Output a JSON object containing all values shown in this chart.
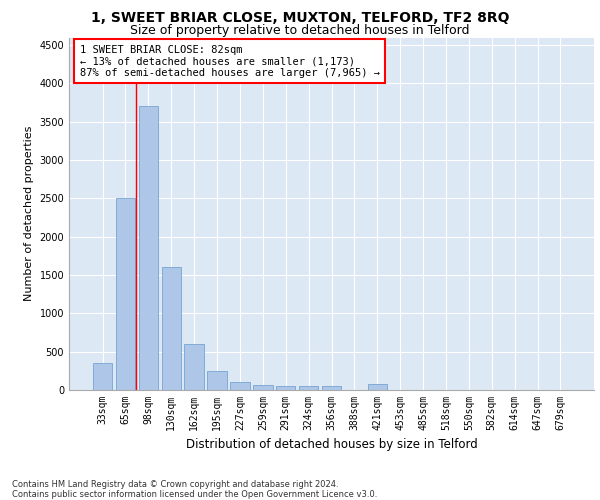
{
  "title1": "1, SWEET BRIAR CLOSE, MUXTON, TELFORD, TF2 8RQ",
  "title2": "Size of property relative to detached houses in Telford",
  "xlabel": "Distribution of detached houses by size in Telford",
  "ylabel": "Number of detached properties",
  "categories": [
    "33sqm",
    "65sqm",
    "98sqm",
    "130sqm",
    "162sqm",
    "195sqm",
    "227sqm",
    "259sqm",
    "291sqm",
    "324sqm",
    "356sqm",
    "388sqm",
    "421sqm",
    "453sqm",
    "485sqm",
    "518sqm",
    "550sqm",
    "582sqm",
    "614sqm",
    "647sqm",
    "679sqm"
  ],
  "values": [
    350,
    2500,
    3700,
    1600,
    600,
    250,
    100,
    60,
    50,
    50,
    50,
    0,
    80,
    0,
    0,
    0,
    0,
    0,
    0,
    0,
    0
  ],
  "bar_color": "#aec6e8",
  "bar_edge_color": "#6699cc",
  "annotation_box_text": "1 SWEET BRIAR CLOSE: 82sqm\n← 13% of detached houses are smaller (1,173)\n87% of semi-detached houses are larger (7,965) →",
  "annotation_box_color": "white",
  "annotation_box_edge_color": "red",
  "vline_x_index": 1.45,
  "ylim": [
    0,
    4600
  ],
  "yticks": [
    0,
    500,
    1000,
    1500,
    2000,
    2500,
    3000,
    3500,
    4000,
    4500
  ],
  "footer": "Contains HM Land Registry data © Crown copyright and database right 2024.\nContains public sector information licensed under the Open Government Licence v3.0.",
  "bg_color": "#dde8f5",
  "grid_color": "white",
  "title1_fontsize": 10,
  "title2_fontsize": 9,
  "xlabel_fontsize": 8.5,
  "ylabel_fontsize": 8,
  "tick_fontsize": 7
}
